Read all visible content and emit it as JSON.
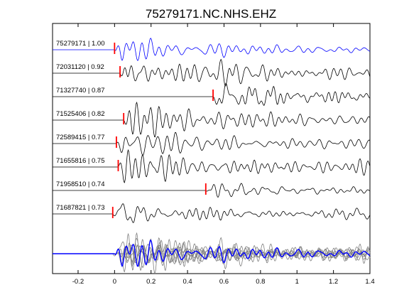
{
  "chart_data": {
    "type": "line",
    "title": "75279171.NC.NHS.EHZ",
    "xlabel": "",
    "ylabel": "",
    "xlim": [
      -0.34,
      1.4
    ],
    "x_ticks": [
      "-0.2",
      "0",
      "0.2",
      "0.4",
      "0.6",
      "0.8",
      "1",
      "1.2",
      "1.4"
    ],
    "grid": false,
    "colors": {
      "reference": "#0000ff",
      "trace": "#000000",
      "pick": "#ff0000",
      "overlay": "#808080"
    },
    "traces": [
      {
        "name": "75279171 | 1.00",
        "pick_time": 0.0,
        "reference": true
      },
      {
        "name": "72031120 | 0.92",
        "pick_time": 0.03
      },
      {
        "name": "71327740 | 0.87",
        "pick_time": 0.54
      },
      {
        "name": "71525406 | 0.82",
        "pick_time": 0.05
      },
      {
        "name": "72589415 | 0.77",
        "pick_time": 0.01
      },
      {
        "name": "71655816 | 0.75",
        "pick_time": 0.02
      },
      {
        "name": "71958510 | 0.74",
        "pick_time": 0.5
      },
      {
        "name": "71687821 | 0.73",
        "pick_time": -0.01
      }
    ],
    "stack_panel": true
  }
}
